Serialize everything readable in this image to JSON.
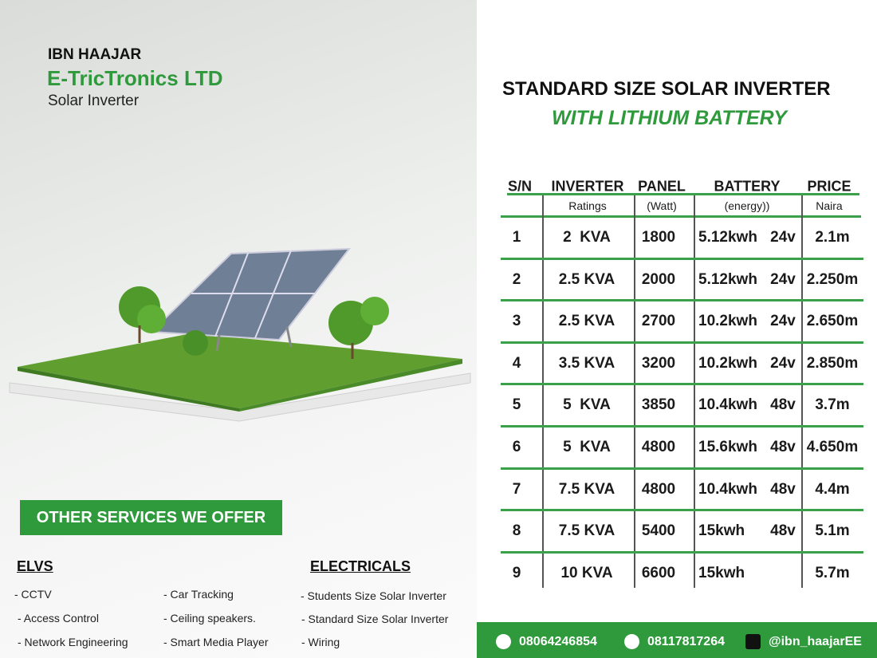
{
  "brand": {
    "company": "IBN HAAJAR",
    "name": "E-TricTronics LTD",
    "tagline": "Solar Inverter"
  },
  "heading": {
    "title": "STANDARD SIZE SOLAR INVERTER",
    "subtitle": "WITH LITHIUM BATTERY"
  },
  "table": {
    "headers": [
      {
        "label": "S/N"
      },
      {
        "label": "INVERTER",
        "sub": "Ratings"
      },
      {
        "label": "PANEL",
        "sub": "(Watt)"
      },
      {
        "label": "BATTERY",
        "sub": "(energy))"
      },
      {
        "label": "PRICE",
        "sub": "Naira"
      }
    ],
    "rows": [
      {
        "sn": "1",
        "inverter": "2  KVA",
        "panel": "1800",
        "battery": "5.12kwh",
        "voltage": "24v",
        "price": "2.1m"
      },
      {
        "sn": "2",
        "inverter": "2.5 KVA",
        "panel": "2000",
        "battery": "5.12kwh",
        "voltage": "24v",
        "price": "2.250m"
      },
      {
        "sn": "3",
        "inverter": "2.5 KVA",
        "panel": "2700",
        "battery": "10.2kwh",
        "voltage": "24v",
        "price": "2.650m"
      },
      {
        "sn": "4",
        "inverter": "3.5 KVA",
        "panel": "3200",
        "battery": "10.2kwh",
        "voltage": "24v",
        "price": "2.850m"
      },
      {
        "sn": "5",
        "inverter": "5  KVA",
        "panel": "3850",
        "battery": "10.4kwh",
        "voltage": "48v",
        "price": "3.7m"
      },
      {
        "sn": "6",
        "inverter": "5  KVA",
        "panel": "4800",
        "battery": "15.6kwh",
        "voltage": "48v",
        "price": "4.650m"
      },
      {
        "sn": "7",
        "inverter": "7.5 KVA",
        "panel": "4800",
        "battery": "10.4kwh",
        "voltage": "48v",
        "price": "4.4m"
      },
      {
        "sn": "8",
        "inverter": "7.5 KVA",
        "panel": "5400",
        "battery": "15kwh",
        "voltage": "48v",
        "price": "5.1m"
      },
      {
        "sn": "9",
        "inverter": "10 KVA",
        "panel": "6600",
        "battery": "15kwh",
        "price": "5.7m"
      }
    ]
  },
  "services": {
    "button": "OTHER SERVICES WE OFFER",
    "elvs": {
      "title": "ELVS",
      "items": [
        "- CCTV",
        "- Access Control",
        "- Network Engineering",
        "- Car Tracking",
        "- Ceiling speakers.",
        "- Smart Media Player"
      ]
    },
    "electricals": {
      "title": "ELECTRICALS",
      "items": [
        "- Students Size Solar Inverter",
        "- Standard Size Solar Inverter",
        "- Wiring"
      ]
    }
  },
  "contacts": [
    "08064246854",
    "08117817264",
    "@ibn_haajarEE"
  ]
}
